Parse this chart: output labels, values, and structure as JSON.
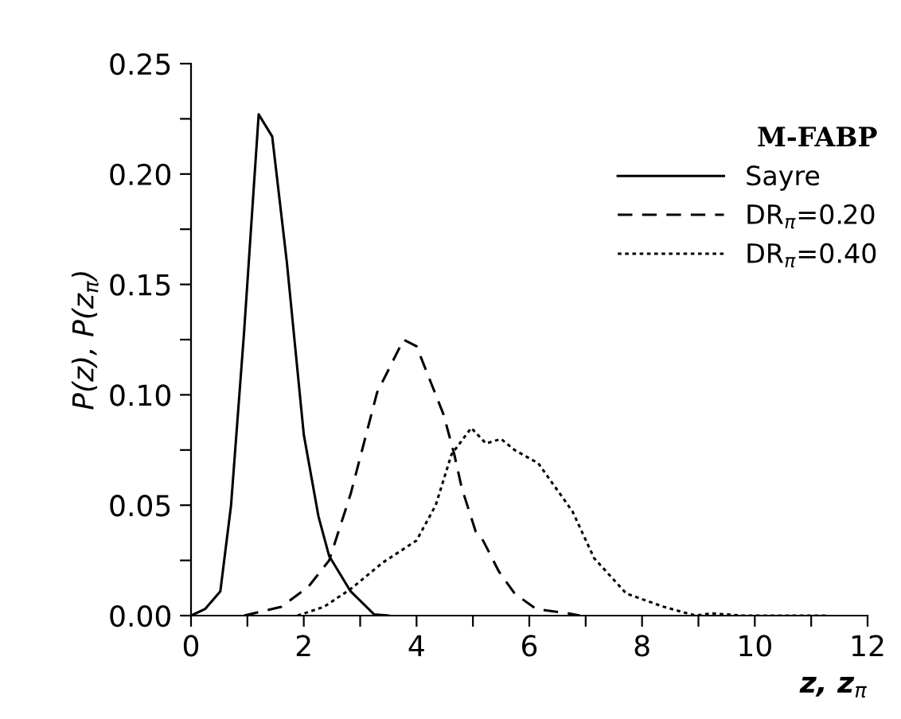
{
  "chart_data": {
    "type": "line",
    "xlabel": "z, z$_{π}$",
    "ylabel": "P(z), P(z$_{π}$)",
    "legend_title": "M-FABP",
    "legend": "top right",
    "grid": false,
    "marker": "none",
    "xlim": [
      0,
      12
    ],
    "ylim": [
      0,
      0.25
    ],
    "xticks": [
      0,
      {
        "value": 1,
        "label": null
      },
      2,
      {
        "value": 3,
        "label": null
      },
      4,
      {
        "value": 5,
        "label": null
      },
      6,
      {
        "value": 7,
        "label": null
      },
      8,
      {
        "value": 9,
        "label": null
      },
      10,
      {
        "value": 11,
        "label": null
      },
      12
    ],
    "yticks": [
      {
        "value": 0,
        "label": "0.00"
      },
      {
        "value": 0.025,
        "label": null
      },
      0.05,
      {
        "value": 0.075,
        "label": null
      },
      {
        "value": 0.1,
        "label": "0.10"
      },
      {
        "value": 0.125,
        "label": null
      },
      0.15,
      {
        "value": 0.175,
        "label": null
      },
      {
        "value": 0.2,
        "label": "0.20"
      },
      {
        "value": 0.225,
        "label": null
      },
      0.25
    ],
    "series": [
      {
        "name": "Sayre",
        "color": "#000000",
        "line_style": "solid",
        "x": [
          0,
          0.25,
          0.52,
          0.71,
          0.94,
          1.2,
          1.44,
          1.7,
          2.0,
          2.26,
          2.45,
          2.83,
          3.25,
          3.5
        ],
        "values": [
          0,
          0.003,
          0.011,
          0.05,
          0.128,
          0.227,
          0.217,
          0.16,
          0.082,
          0.045,
          0.027,
          0.011,
          0.0005,
          0
        ]
      },
      {
        "name": "DR$_{π}$=0.20",
        "color": "#000000",
        "line_style": "dashed",
        "x": [
          0.94,
          1.6,
          2.08,
          2.45,
          2.83,
          3.3,
          3.77,
          4.0,
          4.48,
          4.67,
          4.8,
          5.05,
          5.18,
          5.46,
          5.74,
          6.12,
          6.7,
          6.9
        ],
        "values": [
          0,
          0.004,
          0.013,
          0.025,
          0.055,
          0.101,
          0.125,
          0.122,
          0.091,
          0.073,
          0.058,
          0.038,
          0.034,
          0.02,
          0.01,
          0.003,
          0.001,
          0
        ]
      },
      {
        "name": "DR$_{π}$=0.40",
        "color": "#000000",
        "line_style": "dotted",
        "x": [
          1.89,
          2.36,
          2.83,
          3.4,
          4.0,
          4.34,
          4.62,
          4.97,
          5.23,
          5.5,
          5.74,
          6.16,
          6.77,
          7.15,
          7.72,
          8.38,
          8.95,
          9.24,
          9.8,
          11.3
        ],
        "values": [
          0,
          0.004,
          0.012,
          0.024,
          0.034,
          0.05,
          0.073,
          0.085,
          0.078,
          0.08,
          0.075,
          0.069,
          0.047,
          0.026,
          0.01,
          0.004,
          0,
          0.001,
          0,
          0
        ]
      }
    ]
  }
}
